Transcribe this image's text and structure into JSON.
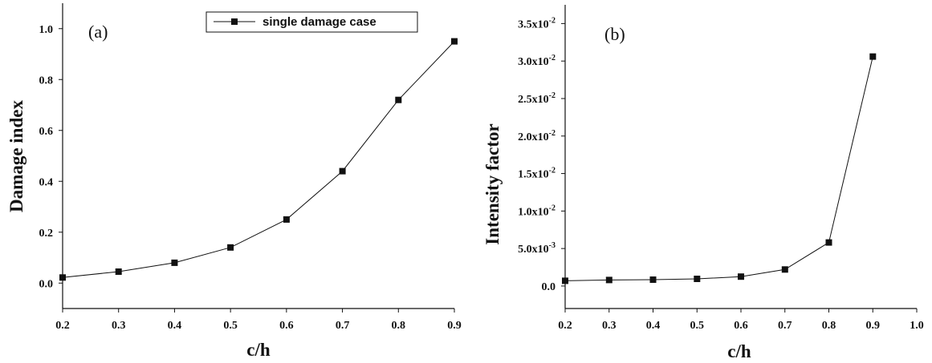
{
  "chart_data": [
    {
      "type": "line",
      "panel_label": "(a)",
      "xlabel": "c/h",
      "ylabel": "Damage index",
      "xlim": [
        0.2,
        0.9
      ],
      "ylim": [
        -0.1,
        1.1
      ],
      "x_ticks": [
        "0.2",
        "0.3",
        "0.4",
        "0.5",
        "0.6",
        "0.7",
        "0.8",
        "0.9"
      ],
      "y_ticks": [
        "0.0",
        "0.2",
        "0.4",
        "0.6",
        "0.8",
        "1.0"
      ],
      "legend": {
        "position": "top-right",
        "entries": [
          "single damage case"
        ]
      },
      "series": [
        {
          "name": "single damage case",
          "marker": "square",
          "color": "#111111",
          "x": [
            0.2,
            0.3,
            0.4,
            0.5,
            0.6,
            0.7,
            0.8,
            0.9
          ],
          "y": [
            0.022,
            0.045,
            0.08,
            0.14,
            0.25,
            0.44,
            0.72,
            0.95
          ]
        }
      ]
    },
    {
      "type": "line",
      "panel_label": "(b)",
      "xlabel": "c/h",
      "ylabel": "Intensity factor",
      "xlim": [
        0.2,
        1.0
      ],
      "ylim": [
        -0.003,
        0.0375
      ],
      "x_ticks": [
        "0.2",
        "0.3",
        "0.4",
        "0.5",
        "0.6",
        "0.7",
        "0.8",
        "0.9",
        "1.0"
      ],
      "y_ticks": [
        {
          "mant": "0.0",
          "exp": ""
        },
        {
          "mant": "5.0x10",
          "exp": "-3"
        },
        {
          "mant": "1.0x10",
          "exp": "-2"
        },
        {
          "mant": "1.5x10",
          "exp": "-2"
        },
        {
          "mant": "2.0x10",
          "exp": "-2"
        },
        {
          "mant": "2.5x10",
          "exp": "-2"
        },
        {
          "mant": "3.0x10",
          "exp": "-2"
        },
        {
          "mant": "3.5x10",
          "exp": "-2"
        }
      ],
      "series": [
        {
          "marker": "square",
          "color": "#111111",
          "x": [
            0.2,
            0.3,
            0.4,
            0.5,
            0.6,
            0.7,
            0.8,
            0.9
          ],
          "y": [
            0.0007,
            0.0008,
            0.00085,
            0.00095,
            0.00125,
            0.0022,
            0.0058,
            0.0306
          ]
        }
      ]
    }
  ]
}
